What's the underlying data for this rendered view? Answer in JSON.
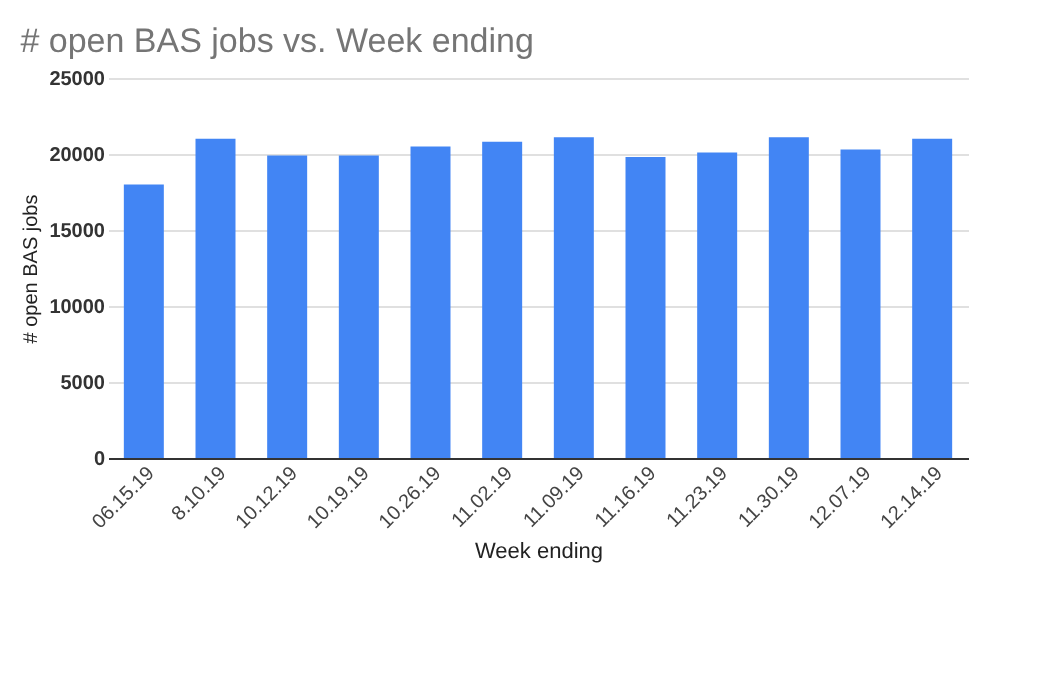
{
  "chart_data": {
    "type": "bar",
    "title": "# open BAS jobs vs. Week ending",
    "xlabel": "Week ending",
    "ylabel": "# open BAS jobs",
    "categories": [
      "06.15.19",
      "8.10.19",
      "10.12.19",
      "10.19.19",
      "10.26.19",
      "11.02.19",
      "11.09.19",
      "11.16.19",
      "11.23.19",
      "11.30.19",
      "12.07.19",
      "12.14.19"
    ],
    "values": [
      18000,
      21000,
      19900,
      19900,
      20500,
      20800,
      21100,
      19800,
      20100,
      21100,
      20300,
      21000
    ],
    "color": "#4285f4",
    "ylim": [
      0,
      25000
    ],
    "yticks": [
      0,
      5000,
      10000,
      15000,
      20000,
      25000
    ],
    "grid": "y"
  }
}
